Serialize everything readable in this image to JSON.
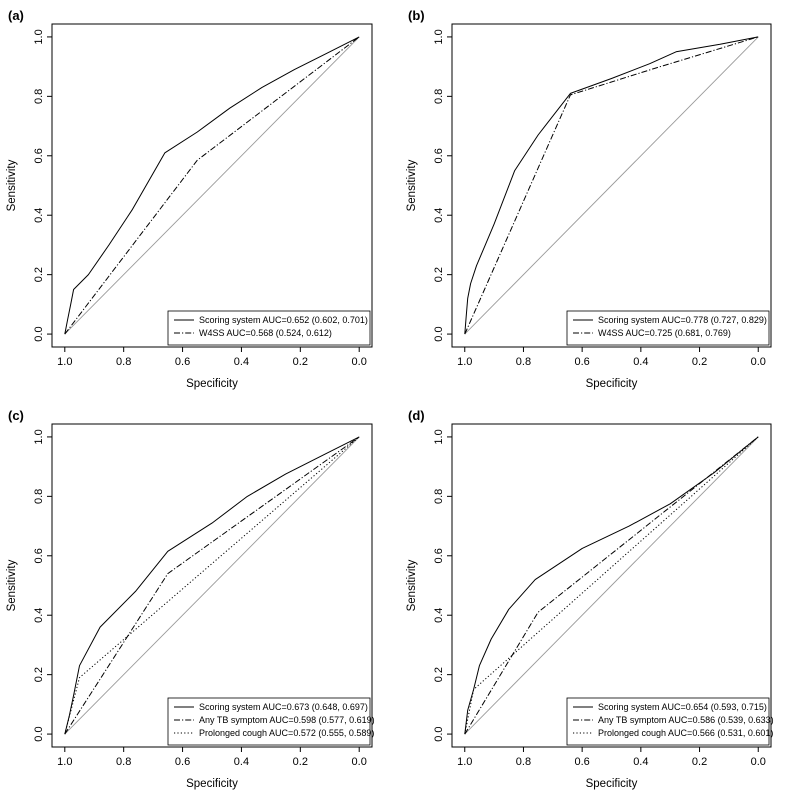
{
  "chart_data": [
    {
      "type": "line",
      "panel_label": "(a)",
      "xlabel": "Specificity",
      "ylabel": "Sensitivity",
      "xlim": [
        1.0,
        0.0
      ],
      "ylim": [
        0.0,
        1.0
      ],
      "x_ticks": [
        "1.0",
        "0.8",
        "0.6",
        "0.4",
        "0.2",
        "0.0"
      ],
      "y_ticks": [
        "0.0",
        "0.2",
        "0.4",
        "0.6",
        "0.8",
        "1.0"
      ],
      "reference_line": true,
      "legend_position": "bottom-right",
      "series": [
        {
          "name": "Scoring system AUC=0.652 (0.602, 0.701)",
          "style": "solid",
          "x": [
            1.0,
            0.99,
            0.98,
            0.97,
            0.92,
            0.85,
            0.77,
            0.66,
            0.55,
            0.44,
            0.33,
            0.22,
            0.11,
            0.0
          ],
          "y": [
            0.0,
            0.05,
            0.1,
            0.15,
            0.2,
            0.3,
            0.42,
            0.61,
            0.68,
            0.76,
            0.83,
            0.89,
            0.945,
            1.0
          ]
        },
        {
          "name": "W4SS AUC=0.568 (0.524, 0.612)",
          "style": "dotdash",
          "x": [
            1.0,
            0.55,
            0.0
          ],
          "y": [
            0.0,
            0.585,
            1.0
          ]
        }
      ]
    },
    {
      "type": "line",
      "panel_label": "(b)",
      "xlabel": "Specificity",
      "ylabel": "Sensitivity",
      "xlim": [
        1.0,
        0.0
      ],
      "ylim": [
        0.0,
        1.0
      ],
      "x_ticks": [
        "1.0",
        "0.8",
        "0.6",
        "0.4",
        "0.2",
        "0.0"
      ],
      "y_ticks": [
        "0.0",
        "0.2",
        "0.4",
        "0.6",
        "0.8",
        "1.0"
      ],
      "reference_line": true,
      "legend_position": "bottom-right",
      "series": [
        {
          "name": "Scoring system AUC=0.778 (0.727, 0.829)",
          "style": "solid",
          "x": [
            1.0,
            0.995,
            0.99,
            0.98,
            0.96,
            0.93,
            0.9,
            0.83,
            0.75,
            0.64,
            0.5,
            0.37,
            0.28,
            0.13,
            0.0
          ],
          "y": [
            0.0,
            0.06,
            0.12,
            0.17,
            0.23,
            0.3,
            0.37,
            0.55,
            0.67,
            0.81,
            0.86,
            0.91,
            0.95,
            0.975,
            1.0
          ]
        },
        {
          "name": "W4SS AUC=0.725 (0.681, 0.769)",
          "style": "dotdash",
          "x": [
            1.0,
            0.64,
            0.35,
            0.0
          ],
          "y": [
            0.0,
            0.805,
            0.895,
            1.0
          ]
        }
      ]
    },
    {
      "type": "line",
      "panel_label": "(c)",
      "xlabel": "Specificity",
      "ylabel": "Sensitivity",
      "xlim": [
        1.0,
        0.0
      ],
      "ylim": [
        0.0,
        1.0
      ],
      "x_ticks": [
        "1.0",
        "0.8",
        "0.6",
        "0.4",
        "0.2",
        "0.0"
      ],
      "y_ticks": [
        "0.0",
        "0.2",
        "0.4",
        "0.6",
        "0.8",
        "1.0"
      ],
      "reference_line": true,
      "legend_position": "bottom-right",
      "series": [
        {
          "name": "Scoring system AUC=0.673 (0.648, 0.697)",
          "style": "solid",
          "x": [
            1.0,
            0.985,
            0.97,
            0.95,
            0.88,
            0.76,
            0.65,
            0.5,
            0.38,
            0.25,
            0.12,
            0.0
          ],
          "y": [
            0.0,
            0.06,
            0.13,
            0.23,
            0.36,
            0.48,
            0.615,
            0.71,
            0.8,
            0.875,
            0.94,
            1.0
          ]
        },
        {
          "name": "Any TB symptom AUC=0.598 (0.577, 0.619)",
          "style": "dotdash",
          "x": [
            1.0,
            0.65,
            0.0
          ],
          "y": [
            0.0,
            0.54,
            1.0
          ]
        },
        {
          "name": "Prolonged cough AUC=0.572 (0.555, 0.589)",
          "style": "dotted",
          "x": [
            1.0,
            0.95,
            0.0
          ],
          "y": [
            0.0,
            0.19,
            1.0
          ]
        }
      ]
    },
    {
      "type": "line",
      "panel_label": "(d)",
      "xlabel": "Specificity",
      "ylabel": "Sensitivity",
      "xlim": [
        1.0,
        0.0
      ],
      "ylim": [
        0.0,
        1.0
      ],
      "x_ticks": [
        "1.0",
        "0.8",
        "0.6",
        "0.4",
        "0.2",
        "0.0"
      ],
      "y_ticks": [
        "0.0",
        "0.2",
        "0.4",
        "0.6",
        "0.8",
        "1.0"
      ],
      "reference_line": true,
      "legend_position": "bottom-right",
      "series": [
        {
          "name": "Scoring system AUC=0.654 (0.593, 0.715)",
          "style": "solid",
          "x": [
            1.0,
            0.99,
            0.97,
            0.95,
            0.91,
            0.85,
            0.76,
            0.6,
            0.44,
            0.3,
            0.15,
            0.0
          ],
          "y": [
            0.0,
            0.08,
            0.15,
            0.23,
            0.32,
            0.42,
            0.52,
            0.625,
            0.7,
            0.775,
            0.88,
            1.0
          ]
        },
        {
          "name": "Any TB symptom AUC=0.586 (0.539, 0.633)",
          "style": "dotdash",
          "x": [
            1.0,
            0.75,
            0.0
          ],
          "y": [
            0.0,
            0.41,
            1.0
          ]
        },
        {
          "name": "Prolonged cough AUC=0.566 (0.531, 0.601)",
          "style": "dotted",
          "x": [
            1.0,
            0.97,
            0.0
          ],
          "y": [
            0.0,
            0.15,
            1.0
          ]
        }
      ]
    }
  ]
}
